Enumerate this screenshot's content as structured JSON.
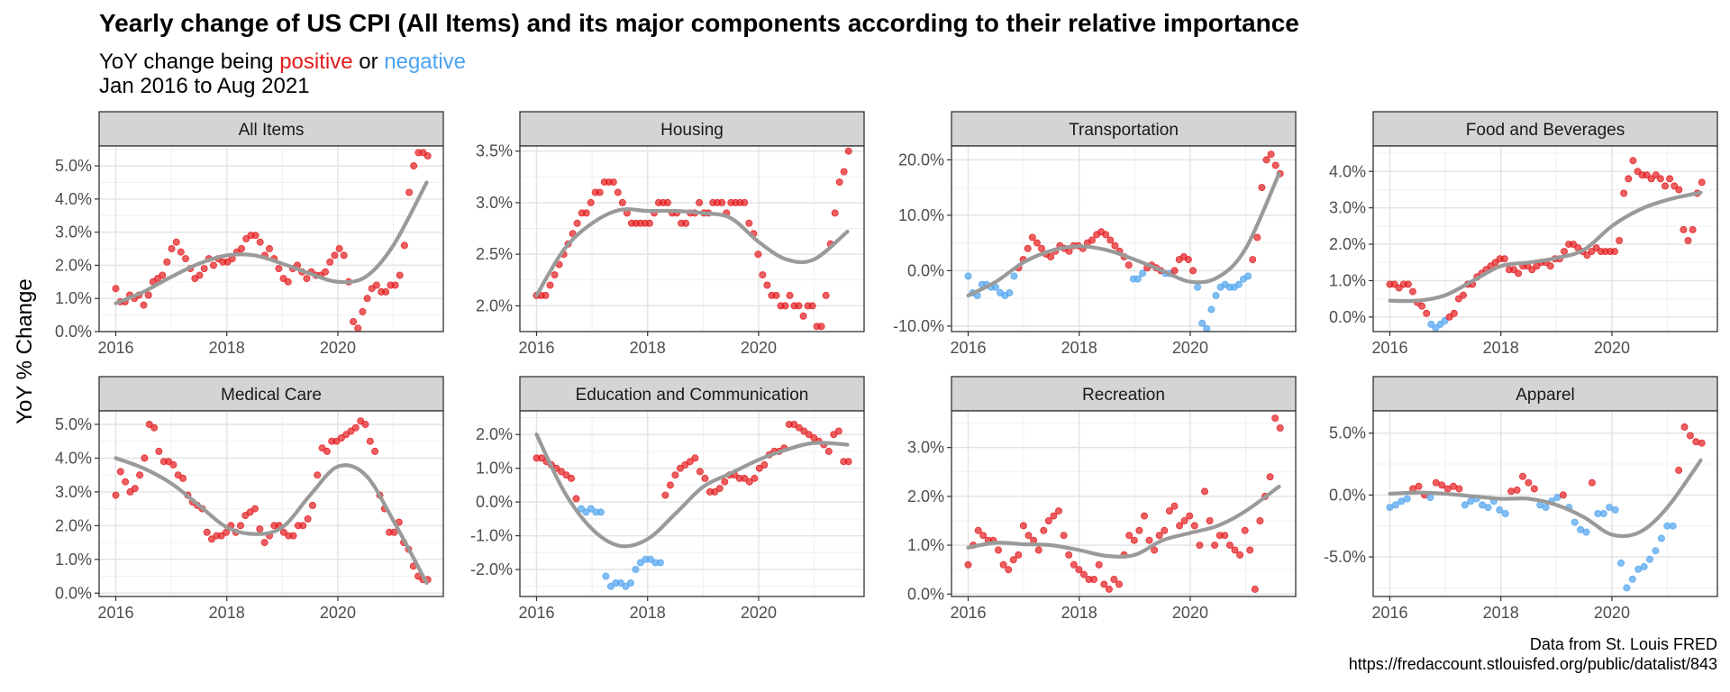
{
  "title": "Yearly change of US CPI (All Items) and its major components according to their relative importance",
  "subtitle": {
    "prefix": "YoY change being ",
    "positive": "positive",
    "middle": " or ",
    "negative": "negative",
    "period": "Jan 2016 to Aug 2021"
  },
  "ylabel": "YoY % Change",
  "caption": {
    "line1": "Data from St. Louis FRED",
    "line2": "https://fredaccount.stlouisfed.org/public/datalist/843"
  },
  "colors": {
    "positive": "#e41a1c",
    "negative": "#4da3f0",
    "trend": "#9a9a9a",
    "strip": "#d4d4d4"
  },
  "chart_data": [
    {
      "type": "scatter",
      "facet": "All Items",
      "xlim": [
        2015.7,
        2021.9
      ],
      "ylim": [
        0,
        5.6
      ],
      "yticks": [
        0,
        1,
        2,
        3,
        4,
        5
      ],
      "ytick_labels": [
        "0.0%",
        "1.0%",
        "2.0%",
        "3.0%",
        "4.0%",
        "5.0%"
      ],
      "xticks": [
        2016,
        2018,
        2020
      ],
      "xtick_labels": [
        "2016",
        "2018",
        "2020"
      ],
      "values": [
        1.3,
        0.9,
        0.9,
        1.1,
        1.0,
        1.1,
        0.8,
        1.1,
        1.5,
        1.6,
        1.7,
        2.1,
        2.5,
        2.7,
        2.4,
        2.2,
        1.9,
        1.6,
        1.7,
        1.9,
        2.2,
        2.0,
        2.2,
        2.1,
        2.1,
        2.2,
        2.4,
        2.5,
        2.8,
        2.9,
        2.9,
        2.7,
        2.3,
        2.5,
        2.2,
        1.9,
        1.6,
        1.5,
        1.9,
        2.0,
        1.8,
        1.6,
        1.8,
        1.7,
        1.7,
        1.8,
        2.1,
        2.3,
        2.5,
        2.3,
        1.5,
        0.3,
        0.1,
        0.6,
        1.0,
        1.3,
        1.4,
        1.2,
        1.2,
        1.4,
        1.4,
        1.7,
        2.6,
        4.2,
        5.0,
        5.4,
        5.4,
        5.3
      ],
      "trend": [
        [
          2016.0,
          0.85
        ],
        [
          2016.5,
          1.2
        ],
        [
          2017.0,
          1.65
        ],
        [
          2017.5,
          2.05
        ],
        [
          2018.0,
          2.3
        ],
        [
          2018.5,
          2.3
        ],
        [
          2019.0,
          2.05
        ],
        [
          2019.5,
          1.75
        ],
        [
          2020.0,
          1.5
        ],
        [
          2020.5,
          1.65
        ],
        [
          2021.0,
          2.6
        ],
        [
          2021.6,
          4.5
        ]
      ]
    },
    {
      "type": "scatter",
      "facet": "Housing",
      "xlim": [
        2015.7,
        2021.9
      ],
      "ylim": [
        1.75,
        3.55
      ],
      "yticks": [
        2,
        2.5,
        3,
        3.5
      ],
      "ytick_labels": [
        "2.0%",
        "2.5%",
        "3.0%",
        "3.5%"
      ],
      "xticks": [
        2016,
        2018,
        2020
      ],
      "xtick_labels": [
        "2016",
        "2018",
        "2020"
      ],
      "values": [
        2.1,
        2.1,
        2.1,
        2.2,
        2.3,
        2.4,
        2.5,
        2.6,
        2.7,
        2.8,
        2.9,
        2.9,
        3.0,
        3.1,
        3.1,
        3.2,
        3.2,
        3.2,
        3.1,
        3.0,
        2.9,
        2.8,
        2.8,
        2.8,
        2.8,
        2.8,
        2.9,
        3.0,
        3.0,
        3.0,
        2.9,
        2.9,
        2.8,
        2.8,
        2.9,
        2.9,
        3.0,
        2.9,
        2.9,
        3.0,
        3.0,
        3.0,
        2.9,
        3.0,
        3.0,
        3.0,
        3.0,
        2.8,
        2.7,
        2.5,
        2.3,
        2.2,
        2.1,
        2.1,
        2.0,
        2.0,
        2.1,
        2.0,
        2.0,
        1.9,
        2.0,
        2.0,
        1.8,
        1.8,
        2.1,
        2.6,
        2.9,
        3.2,
        3.3,
        3.5
      ],
      "trend": [
        [
          2016.0,
          2.1
        ],
        [
          2016.5,
          2.55
        ],
        [
          2017.0,
          2.8
        ],
        [
          2017.5,
          2.93
        ],
        [
          2018.0,
          2.92
        ],
        [
          2018.5,
          2.92
        ],
        [
          2019.0,
          2.9
        ],
        [
          2019.5,
          2.85
        ],
        [
          2020.0,
          2.62
        ],
        [
          2020.5,
          2.45
        ],
        [
          2021.0,
          2.45
        ],
        [
          2021.6,
          2.72
        ]
      ]
    },
    {
      "type": "scatter",
      "facet": "Transportation",
      "xlim": [
        2015.7,
        2021.9
      ],
      "ylim": [
        -11,
        22.5
      ],
      "yticks": [
        -10,
        0,
        10,
        20
      ],
      "ytick_labels": [
        "-10.0%",
        "0.0%",
        "10.0%",
        "20.0%"
      ],
      "xticks": [
        2016,
        2018,
        2020
      ],
      "xtick_labels": [
        "2016",
        "2018",
        "2020"
      ],
      "values": [
        -1.0,
        -4.0,
        -4.5,
        -2.5,
        -2.5,
        -3.0,
        -3.0,
        -4.0,
        -4.5,
        -4.0,
        -1.0,
        0.5,
        2.0,
        4.0,
        6.0,
        5.0,
        4.0,
        3.0,
        2.5,
        3.5,
        4.5,
        4.0,
        3.5,
        4.5,
        4.5,
        4.0,
        5.0,
        5.5,
        6.5,
        7.0,
        6.5,
        5.5,
        4.5,
        3.5,
        2.5,
        1.0,
        -1.5,
        -1.5,
        -0.5,
        0.5,
        1.0,
        0.5,
        0,
        -0.5,
        -0.5,
        0,
        2.0,
        2.5,
        2.0,
        0,
        -3.0,
        -9.5,
        -10.5,
        -7.0,
        -4.5,
        -3.0,
        -2.5,
        -3.0,
        -3.0,
        -2.5,
        -1.5,
        -1.0,
        2.0,
        6.0,
        15.0,
        20.0,
        21.0,
        19.0,
        17.5
      ],
      "trend": [
        [
          2016.0,
          -4.5
        ],
        [
          2016.5,
          -2.0
        ],
        [
          2017.0,
          1.5
        ],
        [
          2017.5,
          3.6
        ],
        [
          2018.0,
          4.4
        ],
        [
          2018.5,
          3.7
        ],
        [
          2019.0,
          2.0
        ],
        [
          2019.5,
          0.0
        ],
        [
          2020.0,
          -2.0
        ],
        [
          2020.5,
          -1.2
        ],
        [
          2021.0,
          4.0
        ],
        [
          2021.6,
          17.5
        ]
      ]
    },
    {
      "type": "scatter",
      "facet": "Food and Beverages",
      "xlim": [
        2015.7,
        2021.9
      ],
      "ylim": [
        -0.4,
        4.7
      ],
      "yticks": [
        0,
        1,
        2,
        3,
        4
      ],
      "ytick_labels": [
        "0.0%",
        "1.0%",
        "2.0%",
        "3.0%",
        "4.0%"
      ],
      "xticks": [
        2016,
        2018,
        2020
      ],
      "xtick_labels": [
        "2016",
        "2018",
        "2020"
      ],
      "values": [
        0.9,
        0.9,
        0.8,
        0.9,
        0.9,
        0.7,
        0.4,
        0.3,
        0.1,
        -0.2,
        -0.3,
        -0.2,
        -0.1,
        0,
        0.1,
        0.5,
        0.6,
        0.9,
        0.9,
        1.1,
        1.2,
        1.3,
        1.4,
        1.5,
        1.6,
        1.6,
        1.3,
        1.3,
        1.2,
        1.4,
        1.4,
        1.3,
        1.4,
        1.5,
        1.5,
        1.4,
        1.6,
        1.6,
        1.8,
        2.0,
        2.0,
        1.9,
        1.8,
        1.7,
        1.8,
        1.9,
        1.8,
        1.8,
        1.8,
        1.8,
        2.1,
        3.4,
        3.8,
        4.3,
        4.0,
        3.9,
        3.9,
        3.8,
        3.9,
        3.8,
        3.6,
        3.8,
        3.6,
        3.5,
        2.4,
        2.1,
        2.4,
        3.4,
        3.7
      ],
      "trend": [
        [
          2016.0,
          0.45
        ],
        [
          2016.5,
          0.45
        ],
        [
          2017.0,
          0.6
        ],
        [
          2017.5,
          1.0
        ],
        [
          2018.0,
          1.4
        ],
        [
          2018.5,
          1.5
        ],
        [
          2019.0,
          1.62
        ],
        [
          2019.5,
          1.85
        ],
        [
          2020.0,
          2.5
        ],
        [
          2020.5,
          2.95
        ],
        [
          2021.0,
          3.22
        ],
        [
          2021.6,
          3.42
        ]
      ]
    },
    {
      "type": "scatter",
      "facet": "Medical Care",
      "xlim": [
        2015.7,
        2021.9
      ],
      "ylim": [
        -0.1,
        5.4
      ],
      "yticks": [
        0,
        1,
        2,
        3,
        4,
        5
      ],
      "ytick_labels": [
        "0.0%",
        "1.0%",
        "2.0%",
        "3.0%",
        "4.0%",
        "5.0%"
      ],
      "xticks": [
        2016,
        2018,
        2020
      ],
      "xtick_labels": [
        "2016",
        "2018",
        "2020"
      ],
      "values": [
        2.9,
        3.6,
        3.3,
        3.0,
        3.1,
        3.5,
        4.0,
        5.0,
        4.9,
        4.2,
        3.9,
        3.9,
        3.8,
        3.5,
        3.4,
        2.9,
        2.7,
        2.6,
        2.5,
        1.8,
        1.6,
        1.7,
        1.7,
        1.8,
        2.0,
        1.8,
        2.0,
        2.3,
        2.4,
        2.5,
        1.9,
        1.5,
        1.7,
        2.0,
        2.0,
        1.8,
        1.7,
        1.7,
        2.0,
        2.0,
        2.2,
        2.6,
        3.5,
        4.3,
        4.2,
        4.5,
        4.5,
        4.6,
        4.7,
        4.8,
        4.9,
        5.1,
        5.0,
        4.5,
        4.2,
        2.9,
        2.5,
        1.8,
        1.8,
        2.1,
        1.5,
        1.3,
        0.8,
        0.5,
        0.4,
        0.4
      ],
      "trend": [
        [
          2016.0,
          4.0
        ],
        [
          2016.5,
          3.7
        ],
        [
          2017.0,
          3.25
        ],
        [
          2017.5,
          2.6
        ],
        [
          2018.0,
          1.95
        ],
        [
          2018.5,
          1.75
        ],
        [
          2019.0,
          1.95
        ],
        [
          2019.5,
          2.9
        ],
        [
          2020.0,
          3.75
        ],
        [
          2020.5,
          3.5
        ],
        [
          2021.0,
          2.15
        ],
        [
          2021.6,
          0.3
        ]
      ]
    },
    {
      "type": "scatter",
      "facet": "Education and Communication",
      "xlim": [
        2015.7,
        2021.9
      ],
      "ylim": [
        -2.8,
        2.7
      ],
      "yticks": [
        -2,
        -1,
        0,
        1,
        2
      ],
      "ytick_labels": [
        "-2.0%",
        "-1.0%",
        "0.0%",
        "1.0%",
        "2.0%"
      ],
      "xticks": [
        2016,
        2018,
        2020
      ],
      "xtick_labels": [
        "2016",
        "2018",
        "2020"
      ],
      "values": [
        1.3,
        1.3,
        1.2,
        1.1,
        1.0,
        0.9,
        0.8,
        0.7,
        0.1,
        -0.2,
        -0.3,
        -0.2,
        -0.3,
        -0.3,
        -2.2,
        -2.5,
        -2.4,
        -2.4,
        -2.5,
        -2.4,
        -2.0,
        -1.8,
        -1.7,
        -1.7,
        -1.8,
        -1.8,
        0.2,
        0.5,
        0.8,
        1.0,
        1.1,
        1.2,
        1.3,
        0.9,
        0.7,
        0.3,
        0.3,
        0.4,
        0.6,
        0.8,
        0.8,
        0.7,
        0.7,
        0.6,
        0.7,
        1.0,
        1.1,
        1.4,
        1.5,
        1.5,
        1.6,
        2.3,
        2.3,
        2.2,
        2.1,
        2.0,
        1.9,
        1.8,
        1.7,
        1.5,
        2.0,
        2.1,
        1.2,
        1.2
      ],
      "trend": [
        [
          2016.0,
          2.0
        ],
        [
          2016.5,
          0.3
        ],
        [
          2017.0,
          -0.8
        ],
        [
          2017.5,
          -1.3
        ],
        [
          2018.0,
          -1.1
        ],
        [
          2018.5,
          -0.35
        ],
        [
          2019.0,
          0.45
        ],
        [
          2019.5,
          0.85
        ],
        [
          2020.0,
          1.25
        ],
        [
          2020.5,
          1.55
        ],
        [
          2021.0,
          1.75
        ],
        [
          2021.6,
          1.7
        ]
      ]
    },
    {
      "type": "scatter",
      "facet": "Recreation",
      "xlim": [
        2015.7,
        2021.9
      ],
      "ylim": [
        -0.05,
        3.75
      ],
      "yticks": [
        0,
        1,
        2,
        3
      ],
      "ytick_labels": [
        "0.0%",
        "1.0%",
        "2.0%",
        "3.0%"
      ],
      "xticks": [
        2016,
        2018,
        2020
      ],
      "xtick_labels": [
        "2016",
        "2018",
        "2020"
      ],
      "values": [
        0.6,
        1.0,
        1.3,
        1.2,
        1.1,
        1.1,
        0.9,
        0.6,
        0.5,
        0.7,
        0.8,
        1.4,
        1.2,
        1.1,
        0.9,
        1.3,
        1.5,
        1.6,
        1.7,
        1.2,
        0.8,
        0.6,
        0.5,
        0.4,
        0.3,
        0.3,
        0.6,
        0.2,
        0.1,
        0.3,
        0.2,
        0.8,
        1.2,
        1.1,
        1.3,
        1.6,
        1.1,
        0.9,
        1.2,
        1.3,
        1.7,
        1.8,
        1.4,
        1.5,
        1.6,
        1.4,
        1.0,
        2.1,
        1.5,
        1.0,
        1.2,
        1.2,
        1.0,
        0.9,
        0.8,
        1.3,
        0.9,
        0.1,
        1.5,
        2.0,
        2.4,
        3.6,
        3.4
      ],
      "trend": [
        [
          2016.0,
          0.95
        ],
        [
          2016.5,
          1.05
        ],
        [
          2017.0,
          1.02
        ],
        [
          2017.5,
          1.0
        ],
        [
          2018.0,
          0.9
        ],
        [
          2018.5,
          0.78
        ],
        [
          2019.0,
          0.8
        ],
        [
          2019.5,
          1.1
        ],
        [
          2020.0,
          1.25
        ],
        [
          2020.5,
          1.4
        ],
        [
          2021.0,
          1.7
        ],
        [
          2021.6,
          2.2
        ]
      ]
    },
    {
      "type": "scatter",
      "facet": "Apparel",
      "xlim": [
        2015.7,
        2021.9
      ],
      "ylim": [
        -8.2,
        6.8
      ],
      "yticks": [
        -5,
        0,
        5
      ],
      "ytick_labels": [
        "-5.0%",
        "0.0%",
        "5.0%"
      ],
      "xticks": [
        2016,
        2018,
        2020
      ],
      "xtick_labels": [
        "2016",
        "2018",
        "2020"
      ],
      "values": [
        -1.0,
        -0.8,
        -0.5,
        -0.3,
        0.5,
        0.7,
        0,
        -0.2,
        1.0,
        0.8,
        0.5,
        0.7,
        0.5,
        -0.8,
        -0.5,
        -0.3,
        -0.8,
        -1.0,
        -0.5,
        -1.2,
        -1.5,
        0.3,
        0.4,
        1.5,
        1.0,
        0.5,
        -0.8,
        -1.0,
        -0.5,
        -0.2,
        0,
        -1.0,
        -2.2,
        -2.8,
        -3.0,
        1.0,
        -1.5,
        -1.5,
        -1.0,
        -1.2,
        -5.5,
        -7.5,
        -6.8,
        -6.0,
        -5.8,
        -5.2,
        -4.5,
        -3.5,
        -2.5,
        -2.5,
        2.0,
        5.5,
        4.8,
        4.3,
        4.2
      ],
      "trend": [
        [
          2016.0,
          0.1
        ],
        [
          2016.5,
          0.2
        ],
        [
          2017.0,
          0.1
        ],
        [
          2017.5,
          -0.1
        ],
        [
          2018.0,
          -0.3
        ],
        [
          2018.5,
          -0.3
        ],
        [
          2019.0,
          -0.8
        ],
        [
          2019.5,
          -1.8
        ],
        [
          2020.0,
          -3.2
        ],
        [
          2020.5,
          -3.0
        ],
        [
          2021.0,
          -1.0
        ],
        [
          2021.6,
          2.8
        ]
      ]
    }
  ]
}
